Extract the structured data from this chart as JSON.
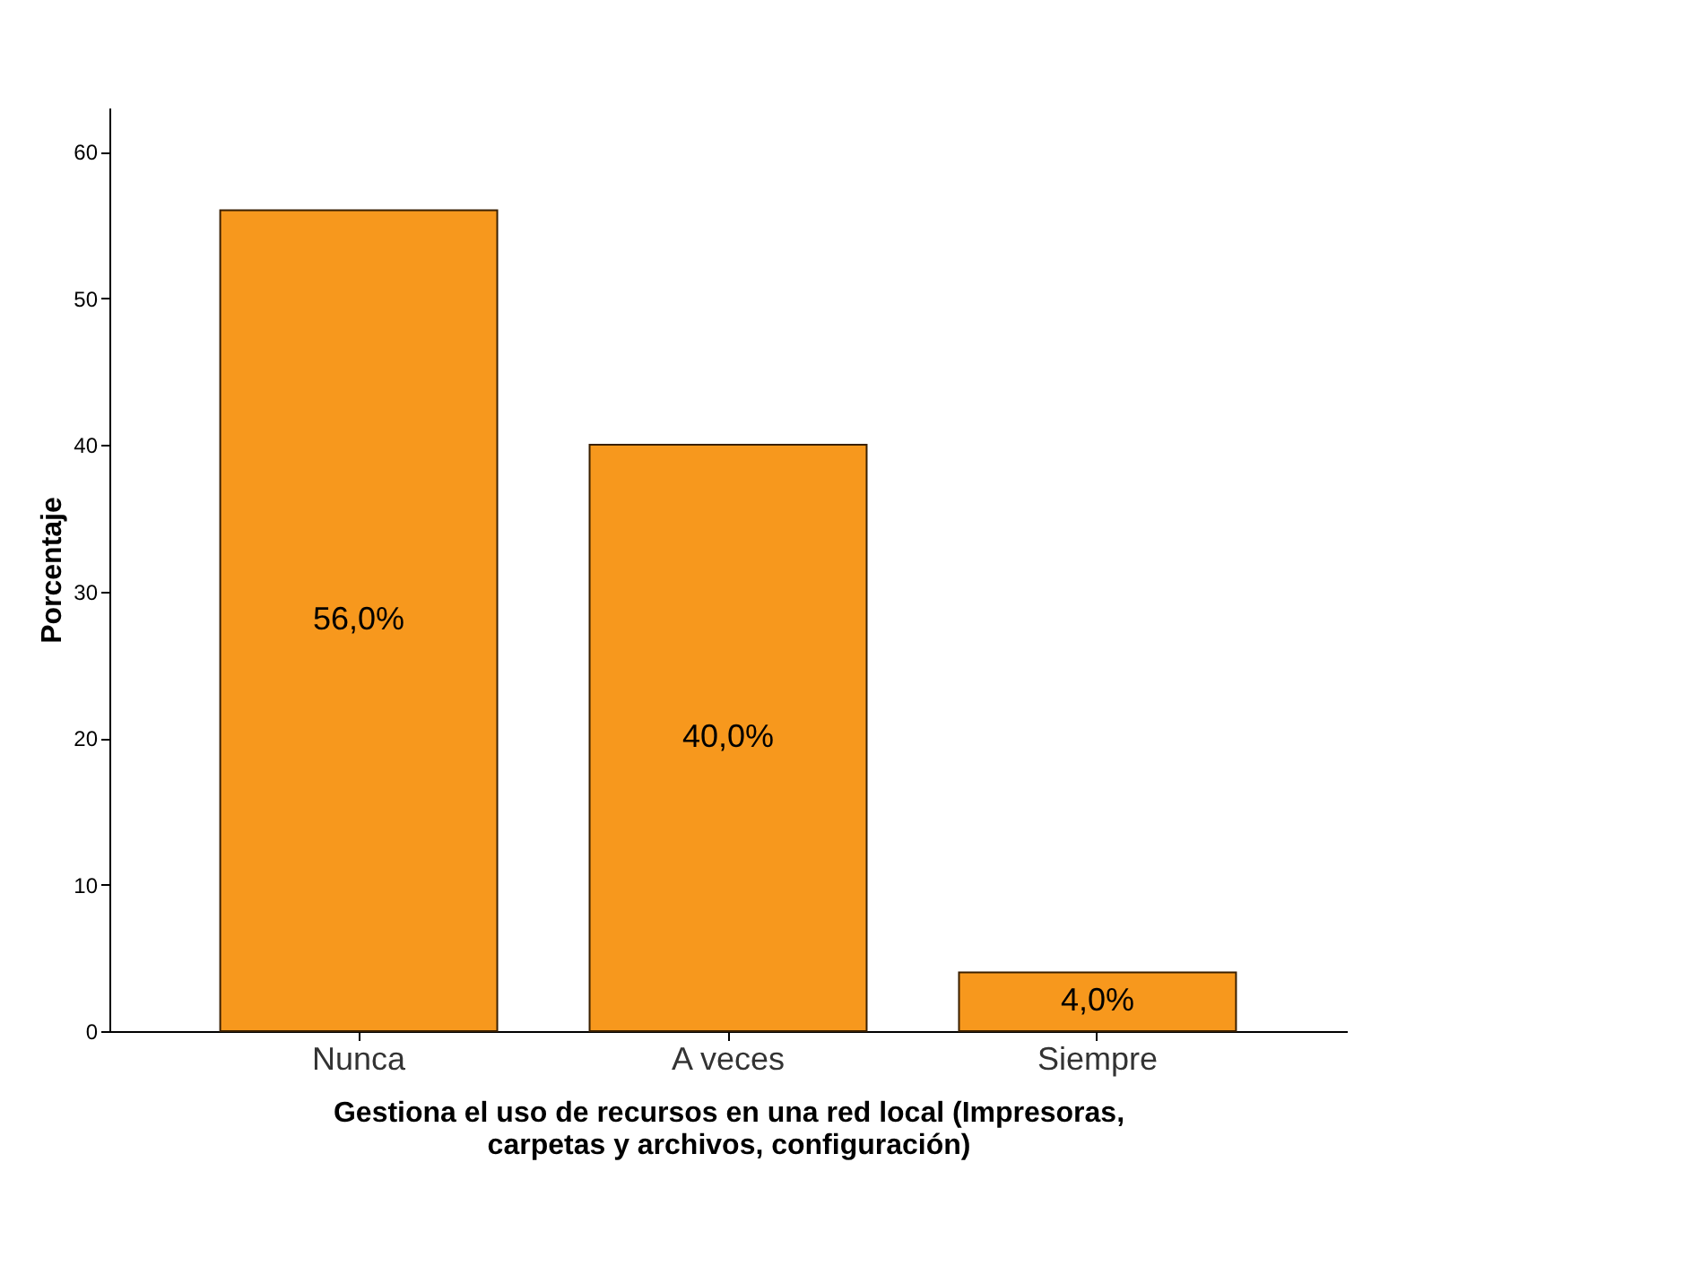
{
  "chart_data": {
    "type": "bar",
    "xlabel": "Gestiona el uso de recursos en una red local (Impresoras,\ncarpetas y archivos, configuración)",
    "ylabel": "Porcentaje",
    "categories": [
      "Nunca",
      "A veces",
      "Siempre"
    ],
    "values": [
      56,
      40,
      4
    ],
    "value_labels": [
      "56,0%",
      "40,0%",
      "4,0%"
    ],
    "color": "#f7981d",
    "ylim": [
      0,
      63
    ],
    "yticks": [
      0,
      10,
      20,
      30,
      40,
      50,
      60
    ],
    "grid": false
  }
}
